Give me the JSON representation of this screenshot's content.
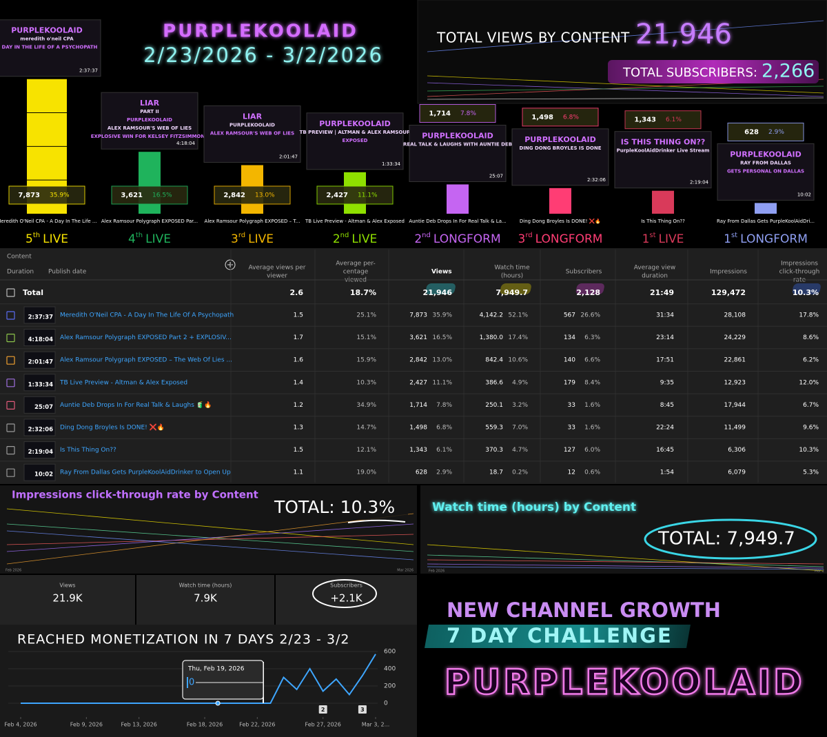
{
  "header": {
    "title": "PURPLEKOOLAID",
    "dates": "2/23/2026 - 3/2/2026"
  },
  "totals_box": {
    "views_title": "TOTAL VIEWS BY CONTENT",
    "views": "21,946",
    "subs_title": "TOTAL SUBSCRIBERS:",
    "subs": "2,266"
  },
  "videos": [
    {
      "thumb": [
        "PURPLEKOOLAID",
        "meredith o'neil CPA",
        "A DAY IN THE LIFE OF A PSYCHOPATH"
      ],
      "duration": "2:37:37",
      "views": 7873,
      "views_label": "7,873",
      "share": "35.9%",
      "color": "#f7e300",
      "short_name": "Meredith O'Neil CPA - A Day In The Life ...",
      "rank": {
        "n": "5",
        "sup": "th",
        "kind": "LIVE"
      }
    },
    {
      "thumb": [
        "LIAR",
        "PART II",
        "PURPLEKOOLAID",
        "ALEX RAMSOUR'S WEB OF LIES",
        "EXPLOSIVE WIN FOR KELSEY FITZSIMMONS"
      ],
      "duration": "4:18:04",
      "views": 3621,
      "views_label": "3,621",
      "share": "16.5%",
      "color": "#1fb35c",
      "short_name": "Alex Ramsour Polygraph EXPOSED Par...",
      "rank": {
        "n": "4",
        "sup": "th",
        "kind": "LIVE"
      }
    },
    {
      "thumb": [
        "LIAR",
        "PURPLEKOOLAID",
        "ALEX RAMSOUR'S WEB OF LIES"
      ],
      "duration": "2:01:47",
      "views": 2842,
      "views_label": "2,842",
      "share": "13.0%",
      "color": "#f3b600",
      "short_name": "Alex Ramsour Polygraph EXPOSED – T...",
      "rank": {
        "n": "3",
        "sup": "rd",
        "kind": "LIVE"
      }
    },
    {
      "thumb": [
        "PURPLEKOOLAID",
        "TB PREVIEW | ALTMAN & ALEX RAMSOUR",
        "EXPOSED"
      ],
      "duration": "1:33:34",
      "views": 2427,
      "views_label": "2,427",
      "share": "11.1%",
      "color": "#8fe000",
      "short_name": "TB Live Preview - Altman & Alex Exposed",
      "rank": {
        "n": "2",
        "sup": "nd",
        "kind": "LIVE"
      }
    },
    {
      "thumb": [
        "PURPLEKOOLAID",
        "REAL TALK & LAUGHS WITH AUNTIE DEB"
      ],
      "duration": "25:07",
      "views": 1714,
      "views_label": "1,714",
      "share": "7.8%",
      "color": "#c565f2",
      "short_name": "Auntie Deb Drops In For Real Talk & La...",
      "rank": {
        "n": "2",
        "sup": "nd",
        "kind": "LONGFORM"
      }
    },
    {
      "thumb": [
        "PURPLEKOOLAID",
        "DING DONG BROYLES IS DONE"
      ],
      "duration": "2:32:06",
      "views": 1498,
      "views_label": "1,498",
      "share": "6.8%",
      "color": "#ff3d74",
      "short_name": "Ding Dong Broyles Is DONE! ❌🔥",
      "rank": {
        "n": "3",
        "sup": "rd",
        "kind": "LONGFORM"
      }
    },
    {
      "thumb": [
        "IS THIS THING ON??",
        "PurpleKoolAidDrinker Live Stream"
      ],
      "duration": "2:19:04",
      "views": 1343,
      "views_label": "1,343",
      "share": "6.1%",
      "color": "#d93a5a",
      "short_name": "Is This Thing On??",
      "rank": {
        "n": "1",
        "sup": "st",
        "kind": "LIVE"
      }
    },
    {
      "thumb": [
        "PURPLEKOOLAID",
        "RAY FROM DALLAS",
        "GETS PERSONAL ON DALLAS"
      ],
      "duration": "10:02",
      "views": 628,
      "views_label": "628",
      "share": "2.9%",
      "color": "#8f9ff2",
      "short_name": "Ray From Dallas Gets PurpleKoolAidDri...",
      "rank": {
        "n": "1",
        "sup": "st",
        "kind": "LONGFORM"
      }
    }
  ],
  "table": {
    "headers": [
      [
        "Content"
      ],
      [
        "Duration"
      ],
      [
        "Publish date"
      ],
      [
        "Average views per",
        "viewer"
      ],
      [
        "Average per-",
        "centage",
        "viewed"
      ],
      [
        "Views"
      ],
      [
        "Watch time",
        "(hours)"
      ],
      [
        "Subscribers"
      ],
      [
        "Average view",
        "duration"
      ],
      [
        "Impressions"
      ],
      [
        "Impressions",
        "click-through",
        "rate"
      ]
    ],
    "total": {
      "label": "Total",
      "avg_views": "2.6",
      "avg_pct": "18.7%",
      "views": "21,946",
      "watch": "7,949.7",
      "subs": "2,128",
      "avd": "21:49",
      "impressions": "129,472",
      "ctr": "10.3%"
    },
    "rows": [
      {
        "color": "#5a6cf0",
        "duration": "2:37:37",
        "title": "Meredith O'Neil CPA - A Day In The Life Of A Psychopath",
        "avg_views": "1.5",
        "avg_pct": "25.1%",
        "views": "7,873",
        "views_pct": "35.9%",
        "watch": "4,142.2",
        "watch_pct": "52.1%",
        "subs": "567",
        "subs_pct": "26.6%",
        "avd": "31:34",
        "impressions": "28,108",
        "ctr": "17.8%"
      },
      {
        "color": "#8bc34a",
        "duration": "4:18:04",
        "title": "Alex Ramsour Polygraph EXPOSED Part 2 + EXPLOSIV...",
        "avg_views": "1.7",
        "avg_pct": "15.1%",
        "views": "3,621",
        "views_pct": "16.5%",
        "watch": "1,380.0",
        "watch_pct": "17.4%",
        "subs": "134",
        "subs_pct": "6.3%",
        "avd": "23:14",
        "impressions": "24,229",
        "ctr": "8.6%"
      },
      {
        "color": "#f0a030",
        "duration": "2:01:47",
        "title": "Alex Ramsour Polygraph EXPOSED – The Web Of Lies ...",
        "avg_views": "1.6",
        "avg_pct": "15.9%",
        "views": "2,842",
        "views_pct": "13.0%",
        "watch": "842.4",
        "watch_pct": "10.6%",
        "subs": "140",
        "subs_pct": "6.6%",
        "avd": "17:51",
        "impressions": "22,861",
        "ctr": "6.2%"
      },
      {
        "color": "#a070e0",
        "duration": "1:33:34",
        "title": "TB Live Preview - Altman & Alex Exposed",
        "avg_views": "1.4",
        "avg_pct": "10.3%",
        "views": "2,427",
        "views_pct": "11.1%",
        "watch": "386.6",
        "watch_pct": "4.9%",
        "subs": "179",
        "subs_pct": "8.4%",
        "avd": "9:35",
        "impressions": "12,923",
        "ctr": "12.0%"
      },
      {
        "color": "#e05a7a",
        "duration": "25:07",
        "title": "Auntie Deb Drops In For Real Talk & Laughs 🧃🔥",
        "avg_views": "1.2",
        "avg_pct": "34.9%",
        "views": "1,714",
        "views_pct": "7.8%",
        "watch": "250.1",
        "watch_pct": "3.2%",
        "subs": "33",
        "subs_pct": "1.6%",
        "avd": "8:45",
        "impressions": "17,944",
        "ctr": "6.7%"
      },
      {
        "color": "#9a9a9a",
        "duration": "2:32:06",
        "title": "Ding Dong Broyles Is DONE! ❌🔥",
        "avg_views": "1.3",
        "avg_pct": "14.7%",
        "views": "1,498",
        "views_pct": "6.8%",
        "watch": "559.3",
        "watch_pct": "7.0%",
        "subs": "33",
        "subs_pct": "1.6%",
        "avd": "22:24",
        "impressions": "11,499",
        "ctr": "9.6%"
      },
      {
        "color": "#9a9a9a",
        "duration": "2:19:04",
        "title": "Is This Thing On??",
        "avg_views": "1.5",
        "avg_pct": "12.1%",
        "views": "1,343",
        "views_pct": "6.1%",
        "watch": "370.3",
        "watch_pct": "4.7%",
        "subs": "127",
        "subs_pct": "6.0%",
        "avd": "16:45",
        "impressions": "6,306",
        "ctr": "10.3%"
      },
      {
        "color": "#9a9a9a",
        "duration": "10:02",
        "title": "Ray From Dallas Gets PurpleKoolAidDrinker to Open Up",
        "avg_views": "1.1",
        "avg_pct": "19.0%",
        "views": "628",
        "views_pct": "2.9%",
        "watch": "18.7",
        "watch_pct": "0.2%",
        "subs": "12",
        "subs_pct": "0.6%",
        "avd": "1:54",
        "impressions": "6,079",
        "ctr": "5.3%"
      }
    ]
  },
  "ctr_panel": {
    "title": "Impressions click-through rate by Content",
    "total": "TOTAL: 10.3%",
    "x_labels": [
      "Feb 2026",
      "Mar 2026"
    ]
  },
  "watch_panel": {
    "title": "Watch time (hours) by Content",
    "total": "TOTAL:  7,949.7",
    "x_labels": [
      "Feb 2026",
      "Mar 2"
    ]
  },
  "cards": [
    {
      "label": "Views",
      "value": "21.9K"
    },
    {
      "label": "Watch time (hours)",
      "value": "7.9K"
    },
    {
      "label": "Subscribers",
      "value": "+2.1K"
    }
  ],
  "chart_data": {
    "type": "line",
    "title": "REACHED MONETIZATION IN 7 DAYS 2/23 - 3/2",
    "x": [
      "2026-02-04",
      "2026-02-05",
      "2026-02-06",
      "2026-02-07",
      "2026-02-08",
      "2026-02-09",
      "2026-02-10",
      "2026-02-11",
      "2026-02-12",
      "2026-02-13",
      "2026-02-14",
      "2026-02-15",
      "2026-02-16",
      "2026-02-17",
      "2026-02-18",
      "2026-02-19",
      "2026-02-20",
      "2026-02-21",
      "2026-02-22",
      "2026-02-23",
      "2026-02-24",
      "2026-02-25",
      "2026-02-26",
      "2026-02-27",
      "2026-02-28",
      "2026-03-01",
      "2026-03-02",
      "2026-03-03"
    ],
    "series": [
      {
        "name": "Subscribers",
        "color": "#3ea6ff",
        "values": [
          0,
          0,
          0,
          0,
          0,
          0,
          0,
          0,
          0,
          0,
          0,
          0,
          0,
          0,
          0,
          0,
          0,
          0,
          0,
          0,
          300,
          160,
          400,
          140,
          280,
          100,
          320,
          570
        ]
      }
    ],
    "xlim": [
      "2026-02-04",
      "2026-03-03"
    ],
    "xticks": [
      {
        "value": "2026-02-04",
        "label": "Feb 4, 2026"
      },
      {
        "value": "2026-02-09",
        "label": "Feb 9, 2026"
      },
      {
        "value": "2026-02-13",
        "label": "Feb 13, 2026"
      },
      {
        "value": "2026-02-18",
        "label": "Feb 18, 2026"
      },
      {
        "value": "2026-02-22",
        "label": "Feb 22, 2026"
      },
      {
        "value": "2026-02-27",
        "label": "Feb 27, 2026"
      },
      {
        "value": "2026-03-03",
        "label": "Mar 3, 2..."
      }
    ],
    "ylim": [
      0,
      600
    ],
    "yticks": [
      0,
      200,
      400,
      600
    ],
    "grid": true,
    "tooltip": {
      "x": "2026-02-19",
      "date": "Thu, Feb 19, 2026",
      "value": "0"
    },
    "markers": [
      {
        "x": "2026-02-27",
        "label": "2"
      },
      {
        "x": "2026-03-02",
        "label": "3"
      }
    ]
  },
  "growth": {
    "line1": "NEW CHANNEL GROWTH",
    "line2": "7 DAY CHALLENGE",
    "brand": "PURPLEKOOLAID"
  }
}
